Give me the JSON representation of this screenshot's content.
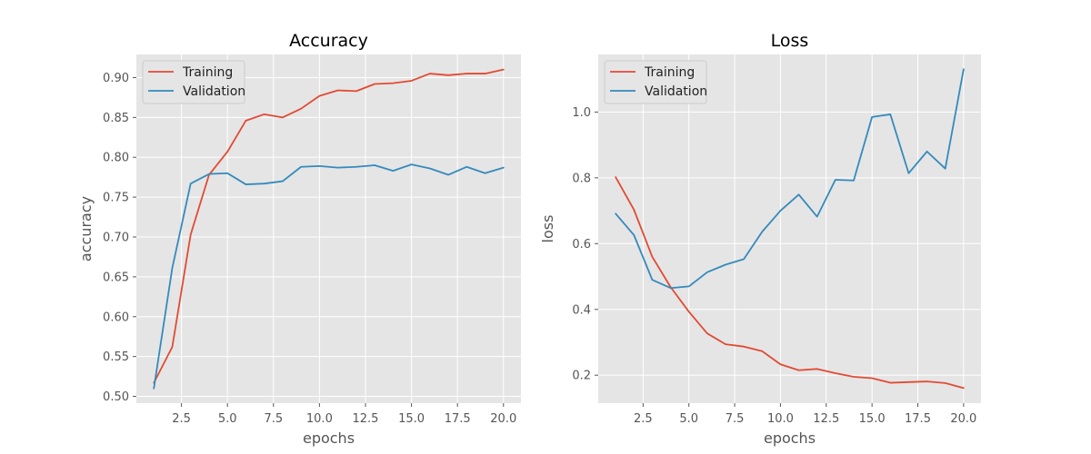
{
  "chart_data": [
    {
      "type": "line",
      "title": "Accuracy",
      "xlabel": "epochs",
      "ylabel": "accuracy",
      "x": [
        1,
        2,
        3,
        4,
        5,
        6,
        7,
        8,
        9,
        10,
        11,
        12,
        13,
        14,
        15,
        16,
        17,
        18,
        19,
        20
      ],
      "xlim": [
        0.05,
        20.95
      ],
      "ylim": [
        0.4915,
        0.929
      ],
      "xticks": [
        2.5,
        5.0,
        7.5,
        10.0,
        12.5,
        15.0,
        17.5,
        20.0
      ],
      "yticks": [
        0.5,
        0.55,
        0.6,
        0.65,
        0.7,
        0.75,
        0.8,
        0.85,
        0.9
      ],
      "grid": true,
      "legend": "upper-left",
      "series": [
        {
          "name": "Training",
          "color": "#E24A33",
          "values": [
            0.517,
            0.562,
            0.703,
            0.778,
            0.807,
            0.846,
            0.854,
            0.85,
            0.861,
            0.877,
            0.884,
            0.883,
            0.892,
            0.893,
            0.896,
            0.905,
            0.903,
            0.905,
            0.905,
            0.91
          ]
        },
        {
          "name": "Validation",
          "color": "#348ABD",
          "values": [
            0.51,
            0.661,
            0.767,
            0.779,
            0.78,
            0.766,
            0.767,
            0.77,
            0.788,
            0.789,
            0.787,
            0.788,
            0.79,
            0.783,
            0.791,
            0.786,
            0.778,
            0.788,
            0.78,
            0.787
          ]
        }
      ]
    },
    {
      "type": "line",
      "title": "Loss",
      "xlabel": "epochs",
      "ylabel": "loss",
      "x": [
        1,
        2,
        3,
        4,
        5,
        6,
        7,
        8,
        9,
        10,
        11,
        12,
        13,
        14,
        15,
        16,
        17,
        18,
        19,
        20
      ],
      "xlim": [
        0.05,
        20.95
      ],
      "ylim": [
        0.115,
        1.175
      ],
      "xticks": [
        2.5,
        5.0,
        7.5,
        10.0,
        12.5,
        15.0,
        17.5,
        20.0
      ],
      "yticks": [
        0.2,
        0.4,
        0.6,
        0.8,
        1.0
      ],
      "grid": true,
      "legend": "upper-left",
      "series": [
        {
          "name": "Training",
          "color": "#E24A33",
          "values": [
            0.802,
            0.703,
            0.56,
            0.468,
            0.393,
            0.327,
            0.294,
            0.287,
            0.273,
            0.233,
            0.215,
            0.219,
            0.206,
            0.195,
            0.191,
            0.177,
            0.179,
            0.181,
            0.176,
            0.161
          ]
        },
        {
          "name": "Validation",
          "color": "#348ABD",
          "values": [
            0.691,
            0.626,
            0.49,
            0.465,
            0.47,
            0.513,
            0.536,
            0.553,
            0.636,
            0.7,
            0.749,
            0.682,
            0.794,
            0.792,
            0.985,
            0.993,
            0.814,
            0.88,
            0.828,
            1.13
          ]
        }
      ]
    }
  ]
}
